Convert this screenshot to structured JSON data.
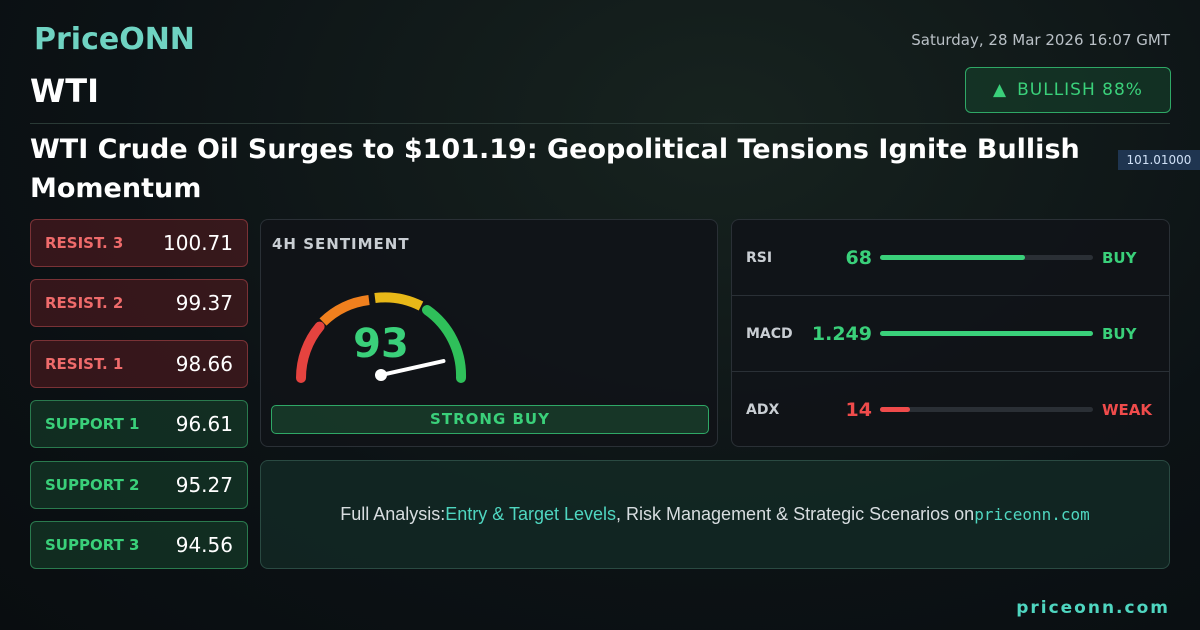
{
  "brand": "PriceONN",
  "date": "Saturday, 28 Mar 2026 16:07 GMT",
  "symbol": "WTI",
  "badge": {
    "arrow": "▲",
    "label": "BULLISH 88%"
  },
  "background_price": "101.01000",
  "headline": "WTI Crude Oil Surges to $101.19: Geopolitical Tensions Ignite Bullish Momentum",
  "levels": [
    {
      "label": "RESIST. 3",
      "value": 100.71,
      "color": "#ef6b6b"
    },
    {
      "label": "RESIST. 2",
      "value": 99.37,
      "color": "#ef6b6b"
    },
    {
      "label": "RESIST. 1",
      "value": 98.66,
      "color": "#ef6b6b"
    },
    {
      "label": "SUPPORT 1",
      "value": 96.61,
      "color": "#3ad07a"
    },
    {
      "label": "SUPPORT 2",
      "value": 95.27,
      "color": "#3ad07a"
    },
    {
      "label": "SUPPORT 3",
      "value": 94.56,
      "color": "#3ad07a"
    }
  ],
  "gauge": {
    "title": "4H SENTIMENT",
    "value": 93,
    "range": [
      0,
      100
    ],
    "verdict": "STRONG BUY"
  },
  "indicators": [
    {
      "name": "RSI",
      "value": 68,
      "range": [
        0,
        100
      ],
      "signal": "BUY",
      "color": "#3ad07a"
    },
    {
      "name": "MACD",
      "value": 1.249,
      "signal": "BUY",
      "color": "#3ad07a"
    },
    {
      "name": "ADX",
      "value": 14,
      "range": [
        0,
        100
      ],
      "signal": "WEAK",
      "color": "#ef4b4b"
    }
  ],
  "cta": {
    "lead": "Full Analysis:",
    "link1": "Entry & Target Levels",
    "middle": ", Risk Management & Strategic Scenarios on",
    "link2": "priceonn.com"
  },
  "footer_url": "priceonn.com"
}
